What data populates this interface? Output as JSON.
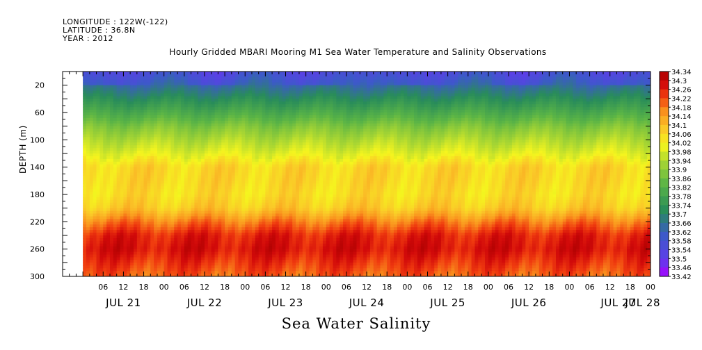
{
  "header": {
    "longitude": "LONGITUDE : 122W(-122)",
    "latitude": "LATITUDE : 36.8N",
    "year": "YEAR : 2012"
  },
  "chart_data": {
    "type": "heatmap",
    "title": "Hourly Gridded MBARI Mooring M1 Sea Water Temperature and Salinity Observations",
    "xlabel": "Sea Water Salinity",
    "ylabel": "DEPTH (m)",
    "y_axis": {
      "range": [
        0,
        300
      ],
      "inverted": true,
      "tick_labels": [
        "20",
        "60",
        "100",
        "140",
        "180",
        "220",
        "260",
        "300"
      ],
      "tick_values": [
        20,
        60,
        100,
        140,
        180,
        220,
        260,
        300
      ]
    },
    "x_axis": {
      "hour_labels": [
        "06",
        "12",
        "18",
        "00",
        "06",
        "12",
        "18",
        "00",
        "06",
        "12",
        "18",
        "00",
        "06",
        "12",
        "18",
        "00",
        "06",
        "12",
        "18",
        "00",
        "06",
        "12",
        "18",
        "00",
        "06",
        "12",
        "18",
        "00"
      ],
      "date_labels": [
        "JUL 21",
        "JUL 22",
        "JUL 23",
        "JUL 24",
        "JUL 25",
        "JUL 26",
        "JUL 27",
        "JUL 28"
      ],
      "start": "2012-07-20 18:00",
      "end": "2012-07-28 00:00",
      "data_start": "2012-07-21 00:00"
    },
    "colorbar": {
      "min": 33.42,
      "max": 34.34,
      "labels": [
        "34.34",
        "34.3",
        "34.26",
        "34.22",
        "34.18",
        "34.14",
        "34.1",
        "34.06",
        "34.02",
        "33.98",
        "33.94",
        "33.9",
        "33.86",
        "33.82",
        "33.78",
        "33.74",
        "33.7",
        "33.66",
        "33.62",
        "33.58",
        "33.54",
        "33.5",
        "33.46",
        "33.42"
      ]
    },
    "depth_profile": {
      "depths": [
        0,
        20,
        40,
        60,
        80,
        100,
        120,
        140,
        160,
        180,
        200,
        220,
        240,
        260,
        280,
        300
      ],
      "salinity": [
        33.58,
        33.64,
        33.72,
        33.8,
        33.88,
        33.94,
        33.99,
        34.06,
        34.06,
        34.05,
        34.08,
        34.18,
        34.26,
        34.28,
        34.24,
        34.2
      ]
    },
    "grid": false
  }
}
